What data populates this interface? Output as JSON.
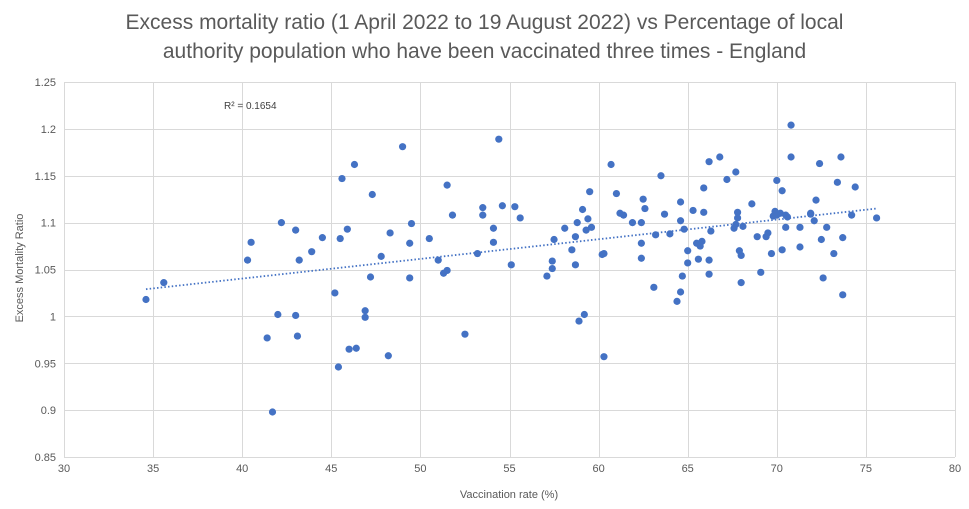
{
  "chart_data": {
    "type": "scatter",
    "title_lines": [
      "Excess mortality ratio (1 April 2022 to 19 August 2022) vs Percentage of local",
      "authority population who have been vaccinated three times - England"
    ],
    "xlabel": "Vaccination rate (%)",
    "ylabel": "Excess Mortality Ratio",
    "xlim": [
      30,
      80
    ],
    "ylim": [
      0.85,
      1.25
    ],
    "xticks": [
      30,
      35,
      40,
      45,
      50,
      55,
      60,
      65,
      70,
      75,
      80
    ],
    "yticks": [
      0.85,
      0.9,
      0.95,
      1,
      1.05,
      1.1,
      1.15,
      1.2,
      1.25
    ],
    "ytick_labels": [
      "0.85",
      "0.9",
      "0.95",
      "1",
      "1.05",
      "1.1",
      "1.15",
      "1.2",
      "1.25"
    ],
    "grid": true,
    "r_squared_label": "R² = 0.1654",
    "trendline": {
      "x": [
        34.6,
        75.6
      ],
      "y": [
        1.029,
        1.115
      ]
    },
    "marker_color": "#4472C4",
    "points": [
      [
        34.6,
        1.018
      ],
      [
        35.6,
        1.036
      ],
      [
        40.3,
        1.06
      ],
      [
        40.5,
        1.079
      ],
      [
        41.4,
        0.977
      ],
      [
        41.7,
        0.898
      ],
      [
        42.0,
        1.002
      ],
      [
        42.2,
        1.1
      ],
      [
        43.0,
        1.001
      ],
      [
        43.0,
        1.092
      ],
      [
        43.1,
        0.979
      ],
      [
        43.2,
        1.06
      ],
      [
        43.9,
        1.069
      ],
      [
        44.5,
        1.084
      ],
      [
        45.2,
        1.025
      ],
      [
        45.4,
        0.946
      ],
      [
        45.5,
        1.083
      ],
      [
        45.6,
        1.147
      ],
      [
        45.9,
        1.093
      ],
      [
        46.0,
        0.965
      ],
      [
        46.3,
        1.162
      ],
      [
        46.4,
        0.966
      ],
      [
        46.9,
        1.006
      ],
      [
        46.9,
        0.999
      ],
      [
        47.2,
        1.042
      ],
      [
        47.3,
        1.13
      ],
      [
        47.8,
        1.064
      ],
      [
        48.2,
        0.958
      ],
      [
        48.3,
        1.089
      ],
      [
        49.0,
        1.181
      ],
      [
        49.4,
        1.078
      ],
      [
        49.4,
        1.041
      ],
      [
        49.5,
        1.099
      ],
      [
        50.5,
        1.083
      ],
      [
        51.0,
        1.06
      ],
      [
        51.3,
        1.046
      ],
      [
        51.5,
        1.049
      ],
      [
        51.5,
        1.14
      ],
      [
        51.8,
        1.108
      ],
      [
        52.5,
        0.981
      ],
      [
        53.2,
        1.067
      ],
      [
        53.5,
        1.116
      ],
      [
        53.5,
        1.108
      ],
      [
        54.1,
        1.079
      ],
      [
        54.1,
        1.094
      ],
      [
        54.4,
        1.189
      ],
      [
        54.6,
        1.118
      ],
      [
        55.1,
        1.055
      ],
      [
        55.3,
        1.117
      ],
      [
        55.6,
        1.105
      ],
      [
        57.1,
        1.043
      ],
      [
        57.4,
        1.059
      ],
      [
        57.4,
        1.051
      ],
      [
        57.5,
        1.082
      ],
      [
        58.1,
        1.094
      ],
      [
        58.5,
        1.071
      ],
      [
        58.7,
        1.055
      ],
      [
        58.7,
        1.085
      ],
      [
        58.8,
        1.1
      ],
      [
        58.9,
        0.995
      ],
      [
        59.1,
        1.114
      ],
      [
        59.2,
        1.002
      ],
      [
        59.3,
        1.092
      ],
      [
        59.4,
        1.104
      ],
      [
        59.5,
        1.133
      ],
      [
        59.6,
        1.095
      ],
      [
        60.2,
        1.066
      ],
      [
        60.3,
        1.067
      ],
      [
        60.3,
        0.957
      ],
      [
        60.7,
        1.162
      ],
      [
        61.0,
        1.131
      ],
      [
        61.2,
        1.11
      ],
      [
        61.4,
        1.108
      ],
      [
        61.9,
        1.1
      ],
      [
        62.4,
        1.1
      ],
      [
        62.4,
        1.078
      ],
      [
        62.4,
        1.062
      ],
      [
        62.5,
        1.125
      ],
      [
        62.6,
        1.115
      ],
      [
        63.1,
        1.031
      ],
      [
        63.2,
        1.087
      ],
      [
        63.5,
        1.15
      ],
      [
        63.7,
        1.109
      ],
      [
        64.0,
        1.088
      ],
      [
        64.4,
        1.016
      ],
      [
        64.6,
        1.026
      ],
      [
        64.6,
        1.102
      ],
      [
        64.6,
        1.122
      ],
      [
        64.7,
        1.043
      ],
      [
        64.8,
        1.093
      ],
      [
        65.0,
        1.057
      ],
      [
        65.0,
        1.07
      ],
      [
        65.3,
        1.113
      ],
      [
        65.5,
        1.078
      ],
      [
        65.6,
        1.061
      ],
      [
        65.7,
        1.075
      ],
      [
        65.8,
        1.08
      ],
      [
        65.9,
        1.137
      ],
      [
        65.9,
        1.111
      ],
      [
        66.2,
        1.165
      ],
      [
        66.2,
        1.045
      ],
      [
        66.2,
        1.06
      ],
      [
        66.3,
        1.091
      ],
      [
        66.8,
        1.17
      ],
      [
        67.2,
        1.146
      ],
      [
        67.6,
        1.094
      ],
      [
        67.7,
        1.098
      ],
      [
        67.7,
        1.154
      ],
      [
        67.8,
        1.105
      ],
      [
        67.8,
        1.111
      ],
      [
        67.9,
        1.07
      ],
      [
        68.0,
        1.036
      ],
      [
        68.0,
        1.065
      ],
      [
        68.1,
        1.096
      ],
      [
        68.6,
        1.12
      ],
      [
        68.9,
        1.085
      ],
      [
        69.1,
        1.047
      ],
      [
        69.4,
        1.085
      ],
      [
        69.5,
        1.089
      ],
      [
        69.7,
        1.067
      ],
      [
        69.8,
        1.107
      ],
      [
        69.9,
        1.112
      ],
      [
        70.0,
        1.108
      ],
      [
        70.0,
        1.145
      ],
      [
        70.2,
        1.11
      ],
      [
        70.3,
        1.071
      ],
      [
        70.3,
        1.134
      ],
      [
        70.5,
        1.095
      ],
      [
        70.5,
        1.108
      ],
      [
        70.6,
        1.106
      ],
      [
        70.8,
        1.17
      ],
      [
        70.8,
        1.204
      ],
      [
        71.3,
        1.095
      ],
      [
        71.3,
        1.074
      ],
      [
        71.9,
        1.11
      ],
      [
        71.9,
        1.109
      ],
      [
        72.1,
        1.102
      ],
      [
        72.2,
        1.124
      ],
      [
        72.4,
        1.163
      ],
      [
        72.5,
        1.082
      ],
      [
        72.6,
        1.041
      ],
      [
        72.8,
        1.095
      ],
      [
        73.2,
        1.067
      ],
      [
        73.4,
        1.143
      ],
      [
        73.6,
        1.17
      ],
      [
        73.7,
        1.084
      ],
      [
        73.7,
        1.023
      ],
      [
        74.2,
        1.108
      ],
      [
        74.4,
        1.138
      ],
      [
        75.6,
        1.105
      ]
    ]
  }
}
